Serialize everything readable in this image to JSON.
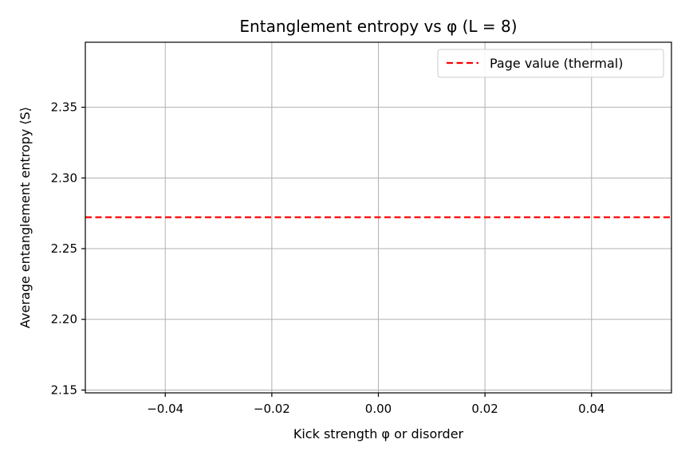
{
  "chart_data": {
    "type": "line",
    "title": "Entanglement entropy vs φ (L = 8)",
    "xlabel": "Kick strength φ or disorder",
    "ylabel": "Average entanglement entropy ⟨S⟩",
    "xlim": [
      -0.055,
      0.055
    ],
    "ylim": [
      2.148,
      2.396
    ],
    "xticks": [
      -0.04,
      -0.02,
      0.0,
      0.02,
      0.04
    ],
    "xtick_labels": [
      "−0.04",
      "−0.02",
      "0.00",
      "0.02",
      "0.04"
    ],
    "yticks": [
      2.15,
      2.2,
      2.25,
      2.3,
      2.35
    ],
    "ytick_labels": [
      "2.15",
      "2.20",
      "2.25",
      "2.30",
      "2.35"
    ],
    "grid": true,
    "legend_position": "top-right",
    "series": [
      {
        "name": "Page value (thermal)",
        "kind": "horizontal-line",
        "y": 2.2722,
        "color": "#ff0000",
        "linestyle": "dashed"
      }
    ]
  }
}
